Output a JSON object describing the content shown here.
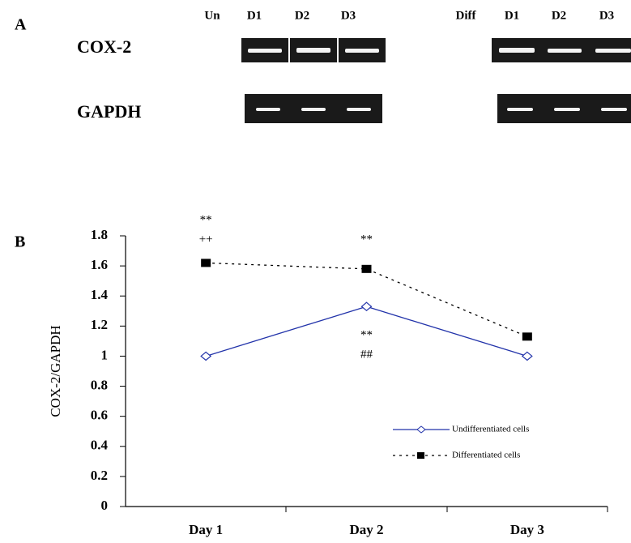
{
  "panel_a": {
    "label": "A",
    "headers": [
      "Un",
      "D1",
      "D2",
      "D3",
      "Diff",
      "D1",
      "D2",
      "D3"
    ],
    "rows": [
      "COX-2",
      "GAPDH"
    ]
  },
  "chart_data": {
    "type": "line",
    "panel_label": "B",
    "y_label": "COX-2/GAPDH",
    "categories": [
      "Day 1",
      "Day 2",
      "Day 3"
    ],
    "series": [
      {
        "name": "Undifferentiated cells",
        "color": "#2233aa",
        "marker": "diamond",
        "dashed": false,
        "values": [
          1,
          1.33,
          1
        ]
      },
      {
        "name": "Differentiated cells",
        "color": "#000000",
        "marker": "square",
        "dashed": true,
        "values": [
          1.62,
          1.58,
          1.13
        ]
      }
    ],
    "ylim": [
      0,
      1.8
    ],
    "yticks": [
      0,
      0.2,
      0.4,
      0.6,
      0.8,
      1,
      1.2,
      1.4,
      1.6,
      1.8
    ],
    "annotations": [
      "**",
      "++",
      "**",
      "**",
      "##"
    ]
  }
}
